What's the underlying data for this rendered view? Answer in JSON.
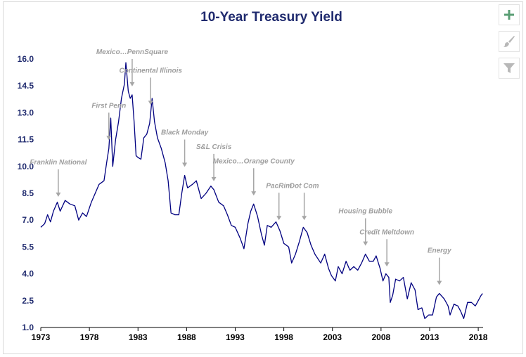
{
  "colors": {
    "line": "#000080",
    "title": "#1f2a6e",
    "tick_y": "#1f2a6e",
    "tick_x": "#000000",
    "annotation": "#9e9e9e",
    "arrow": "#a6a6a6",
    "axis": "#000000",
    "tool_add": "#5a9e74",
    "tool_icon": "#b8b8b8"
  },
  "toolbar": [
    {
      "name": "add-chart-element-button",
      "icon": "plus-icon"
    },
    {
      "name": "chart-styles-button",
      "icon": "brush-icon"
    },
    {
      "name": "chart-filters-button",
      "icon": "funnel-icon"
    }
  ],
  "chart_data": {
    "type": "line",
    "title": "10-Year Treasury Yield",
    "xlabel": "",
    "ylabel": "",
    "xlim": [
      1973,
      2018.5
    ],
    "ylim": [
      1.0,
      16.0
    ],
    "grid": false,
    "x_ticks": [
      "1973",
      "1978",
      "1983",
      "1988",
      "1993",
      "1998",
      "2003",
      "2008",
      "2013",
      "2018"
    ],
    "y_ticks": [
      "16.0",
      "14.5",
      "13.0",
      "11.5",
      "10.0",
      "8.5",
      "7.0",
      "5.5",
      "4.0",
      "2.5",
      "1.0"
    ],
    "series": [
      {
        "name": "",
        "points": [
          [
            1973.0,
            6.6
          ],
          [
            1973.4,
            6.8
          ],
          [
            1973.7,
            7.3
          ],
          [
            1974.0,
            6.9
          ],
          [
            1974.3,
            7.5
          ],
          [
            1974.7,
            8.0
          ],
          [
            1975.0,
            7.5
          ],
          [
            1975.5,
            8.1
          ],
          [
            1976.0,
            7.9
          ],
          [
            1976.5,
            7.8
          ],
          [
            1976.9,
            7.0
          ],
          [
            1977.3,
            7.4
          ],
          [
            1977.7,
            7.2
          ],
          [
            1978.2,
            8.0
          ],
          [
            1978.6,
            8.5
          ],
          [
            1979.0,
            9.0
          ],
          [
            1979.5,
            9.2
          ],
          [
            1979.8,
            10.3
          ],
          [
            1980.0,
            11.0
          ],
          [
            1980.2,
            12.7
          ],
          [
            1980.4,
            10.0
          ],
          [
            1980.7,
            11.5
          ],
          [
            1981.0,
            12.5
          ],
          [
            1981.3,
            13.8
          ],
          [
            1981.6,
            14.6
          ],
          [
            1981.75,
            15.8
          ],
          [
            1982.0,
            14.2
          ],
          [
            1982.2,
            13.8
          ],
          [
            1982.4,
            14.0
          ],
          [
            1982.6,
            12.5
          ],
          [
            1982.8,
            10.6
          ],
          [
            1983.0,
            10.5
          ],
          [
            1983.3,
            10.4
          ],
          [
            1983.6,
            11.6
          ],
          [
            1983.9,
            11.8
          ],
          [
            1984.2,
            12.4
          ],
          [
            1984.45,
            13.8
          ],
          [
            1984.7,
            12.5
          ],
          [
            1985.0,
            11.6
          ],
          [
            1985.4,
            11.0
          ],
          [
            1985.8,
            10.2
          ],
          [
            1986.1,
            9.2
          ],
          [
            1986.4,
            7.4
          ],
          [
            1986.8,
            7.3
          ],
          [
            1987.2,
            7.3
          ],
          [
            1987.5,
            8.5
          ],
          [
            1987.8,
            9.5
          ],
          [
            1988.1,
            8.8
          ],
          [
            1988.6,
            9.0
          ],
          [
            1989.0,
            9.2
          ],
          [
            1989.5,
            8.2
          ],
          [
            1990.0,
            8.5
          ],
          [
            1990.5,
            8.9
          ],
          [
            1990.8,
            8.7
          ],
          [
            1991.3,
            8.0
          ],
          [
            1991.8,
            7.8
          ],
          [
            1992.2,
            7.3
          ],
          [
            1992.6,
            6.7
          ],
          [
            1993.0,
            6.6
          ],
          [
            1993.5,
            6.0
          ],
          [
            1993.9,
            5.4
          ],
          [
            1994.3,
            6.8
          ],
          [
            1994.6,
            7.5
          ],
          [
            1994.9,
            7.9
          ],
          [
            1995.3,
            7.2
          ],
          [
            1995.7,
            6.2
          ],
          [
            1996.0,
            5.6
          ],
          [
            1996.3,
            6.7
          ],
          [
            1996.7,
            6.6
          ],
          [
            1997.2,
            6.9
          ],
          [
            1997.6,
            6.4
          ],
          [
            1998.0,
            5.7
          ],
          [
            1998.5,
            5.5
          ],
          [
            1998.8,
            4.6
          ],
          [
            1999.2,
            5.1
          ],
          [
            1999.6,
            5.8
          ],
          [
            2000.0,
            6.6
          ],
          [
            2000.4,
            6.3
          ],
          [
            2000.8,
            5.6
          ],
          [
            2001.2,
            5.1
          ],
          [
            2001.8,
            4.6
          ],
          [
            2002.2,
            5.1
          ],
          [
            2002.6,
            4.3
          ],
          [
            2002.9,
            3.9
          ],
          [
            2003.3,
            3.6
          ],
          [
            2003.6,
            4.4
          ],
          [
            2004.0,
            4.0
          ],
          [
            2004.4,
            4.7
          ],
          [
            2004.8,
            4.2
          ],
          [
            2005.2,
            4.4
          ],
          [
            2005.6,
            4.2
          ],
          [
            2006.0,
            4.6
          ],
          [
            2006.4,
            5.1
          ],
          [
            2006.8,
            4.7
          ],
          [
            2007.2,
            4.7
          ],
          [
            2007.5,
            5.0
          ],
          [
            2007.9,
            4.3
          ],
          [
            2008.2,
            3.6
          ],
          [
            2008.5,
            4.0
          ],
          [
            2008.8,
            3.8
          ],
          [
            2008.95,
            2.4
          ],
          [
            2009.2,
            2.8
          ],
          [
            2009.5,
            3.7
          ],
          [
            2009.9,
            3.6
          ],
          [
            2010.3,
            3.8
          ],
          [
            2010.7,
            2.6
          ],
          [
            2011.1,
            3.5
          ],
          [
            2011.5,
            3.1
          ],
          [
            2011.8,
            2.0
          ],
          [
            2012.2,
            2.1
          ],
          [
            2012.5,
            1.5
          ],
          [
            2012.9,
            1.7
          ],
          [
            2013.3,
            1.7
          ],
          [
            2013.7,
            2.7
          ],
          [
            2014.0,
            2.9
          ],
          [
            2014.5,
            2.6
          ],
          [
            2014.9,
            2.2
          ],
          [
            2015.1,
            1.7
          ],
          [
            2015.5,
            2.3
          ],
          [
            2015.9,
            2.2
          ],
          [
            2016.2,
            1.9
          ],
          [
            2016.5,
            1.5
          ],
          [
            2016.9,
            2.4
          ],
          [
            2017.3,
            2.4
          ],
          [
            2017.7,
            2.2
          ],
          [
            2018.0,
            2.5
          ],
          [
            2018.3,
            2.8
          ],
          [
            2018.45,
            2.9
          ]
        ]
      }
    ],
    "annotations": [
      {
        "text": "Franklin National",
        "x": 1974.8
      },
      {
        "text": "First Penn",
        "x": 1980.0
      },
      {
        "text": "Mexico…PennSquare",
        "x": 1982.4
      },
      {
        "text": "Continental Illinois",
        "x": 1984.3
      },
      {
        "text": "Black Monday",
        "x": 1987.8
      },
      {
        "text": "S&L Crisis",
        "x": 1990.8
      },
      {
        "text": "Mexico…Orange County",
        "x": 1994.9
      },
      {
        "text": "PacRim",
        "x": 1997.5
      },
      {
        "text": "Dot Com",
        "x": 2000.1
      },
      {
        "text": "Housing Bubble",
        "x": 2006.4
      },
      {
        "text": "Credit Meltdown",
        "x": 2008.6
      },
      {
        "text": "Energy",
        "x": 2014.0
      }
    ]
  }
}
